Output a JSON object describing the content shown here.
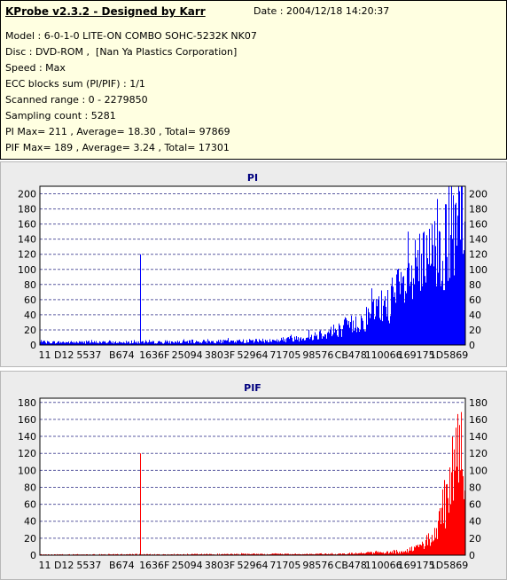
{
  "info": {
    "title": "KProbe v2.3.2 - Designed by Karr",
    "date": "Date : 2004/12/18 14:20:37",
    "lines": [
      "Model : 6-0-1-0 LITE-ON COMBO SOHC-5232K NK07",
      "Disc : DVD-ROM ,  [Nan Ya Plastics Corporation]",
      "Speed : Max",
      "ECC blocks sum (PI/PIF) : 1/1",
      "Scanned range : 0 - 2279850",
      "Sampling count : 5281",
      "PI Max= 211 , Average= 18.30 , Total= 97869",
      "PIF Max= 189 , Average= 3.24 , Total= 17301"
    ]
  },
  "chart_data": [
    {
      "type": "bar",
      "title": "PI",
      "color": "#0000ff",
      "ylim": [
        0,
        210
      ],
      "yticks": [
        0,
        20,
        40,
        60,
        80,
        100,
        120,
        140,
        160,
        180,
        200
      ],
      "xticklabels": [
        "11 D12",
        "5537",
        "B674",
        "1636F",
        "25094",
        "3803F",
        "52964",
        "71705",
        "98576",
        "CB478",
        "110066",
        "169175",
        "1D5869"
      ],
      "grid": true,
      "spike": {
        "position": 0.235,
        "value": 120
      },
      "envelope": [
        [
          0.0,
          5
        ],
        [
          0.3,
          5
        ],
        [
          0.55,
          8
        ],
        [
          0.63,
          15
        ],
        [
          0.7,
          28
        ],
        [
          0.76,
          45
        ],
        [
          0.82,
          80
        ],
        [
          0.88,
          120
        ],
        [
          0.93,
          165
        ],
        [
          0.97,
          200
        ],
        [
          1.0,
          210
        ]
      ],
      "max_value": 211
    },
    {
      "type": "bar",
      "title": "PIF",
      "color": "#ff0000",
      "ylim": [
        0,
        185
      ],
      "yticks": [
        0,
        20,
        40,
        60,
        80,
        100,
        120,
        140,
        160,
        180
      ],
      "xticklabels": [
        "11 D12",
        "5537",
        "B674",
        "1636F",
        "25094",
        "3803F",
        "52964",
        "71705",
        "98576",
        "CB478",
        "110066",
        "169175",
        "1D5869"
      ],
      "grid": true,
      "spike": {
        "position": 0.235,
        "value": 120
      },
      "envelope": [
        [
          0.0,
          1
        ],
        [
          0.7,
          2
        ],
        [
          0.85,
          5
        ],
        [
          0.9,
          15
        ],
        [
          0.93,
          40
        ],
        [
          0.96,
          90
        ],
        [
          0.98,
          150
        ],
        [
          1.0,
          189
        ]
      ],
      "max_value": 189
    }
  ]
}
